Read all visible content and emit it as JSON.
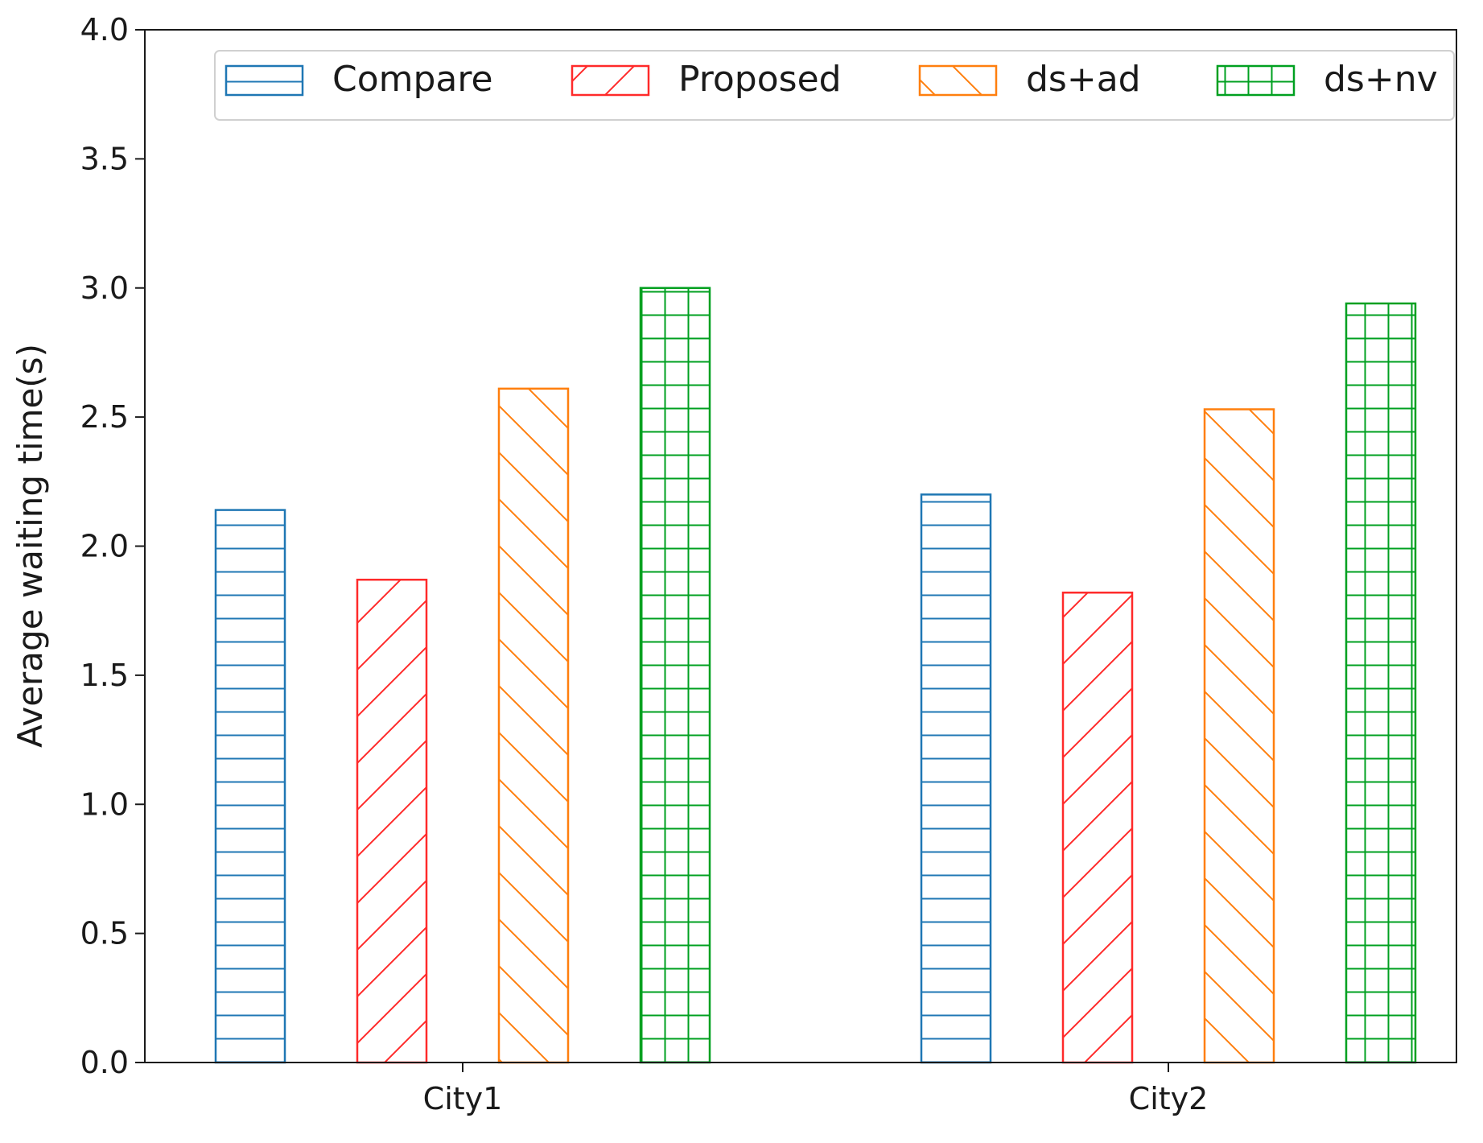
{
  "chart_data": {
    "type": "bar",
    "title": "",
    "xlabel": "",
    "ylabel": "Average waiting time(s)",
    "ylim": [
      0,
      4.0
    ],
    "yticks": [
      "0.0",
      "0.5",
      "1.0",
      "1.5",
      "2.0",
      "2.5",
      "3.0",
      "3.5",
      "4.0"
    ],
    "categories": [
      "City1",
      "City2"
    ],
    "grid": false,
    "legend_position": "top",
    "series": [
      {
        "name": "Compare",
        "values": [
          2.14,
          2.2
        ],
        "color": "#1f77b4",
        "hatch": "horizontal"
      },
      {
        "name": "Proposed",
        "values": [
          1.87,
          1.82
        ],
        "color": "#ff2a2a",
        "hatch": "forward-diagonal"
      },
      {
        "name": "ds+ad",
        "values": [
          2.61,
          2.53
        ],
        "color": "#ff7f0e",
        "hatch": "back-diagonal"
      },
      {
        "name": "ds+nv",
        "values": [
          3.0,
          2.94
        ],
        "color": "#00a020",
        "hatch": "grid"
      }
    ]
  }
}
